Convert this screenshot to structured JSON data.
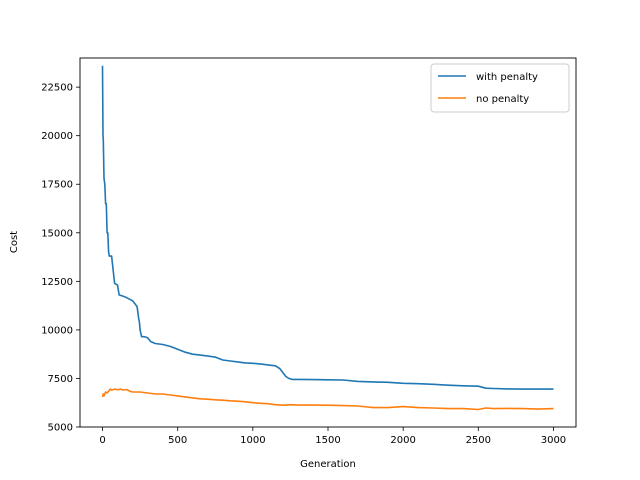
{
  "chart_data": {
    "type": "line",
    "title": "",
    "xlabel": "Generation",
    "ylabel": "Cost",
    "xlim": [
      -150,
      3150
    ],
    "ylim": [
      5000,
      24000
    ],
    "xticks": [
      0,
      500,
      1000,
      1500,
      2000,
      2500,
      3000
    ],
    "xtick_labels": [
      "0",
      "500",
      "1000",
      "1500",
      "2000",
      "2500",
      "3000"
    ],
    "yticks": [
      5000,
      7500,
      10000,
      12500,
      15000,
      17500,
      20000,
      22500
    ],
    "ytick_labels": [
      "5000",
      "7500",
      "10000",
      "12500",
      "15000",
      "17500",
      "20000",
      "22500"
    ],
    "grid": false,
    "legend_position": "top-right",
    "series": [
      {
        "name": "with penalty",
        "color": "#1f77b4",
        "x": [
          0,
          3,
          5,
          10,
          15,
          20,
          25,
          30,
          35,
          40,
          45,
          50,
          60,
          80,
          100,
          110,
          130,
          150,
          200,
          220,
          230,
          240,
          245,
          250,
          260,
          280,
          300,
          320,
          350,
          400,
          450,
          500,
          550,
          600,
          650,
          700,
          750,
          800,
          850,
          900,
          950,
          1000,
          1050,
          1100,
          1150,
          1180,
          1200,
          1220,
          1240,
          1260,
          1300,
          1400,
          1500,
          1600,
          1700,
          1800,
          1900,
          2000,
          2100,
          2200,
          2300,
          2400,
          2500,
          2550,
          2600,
          2700,
          2800,
          2900,
          3000
        ],
        "y": [
          23600,
          20000,
          19800,
          17800,
          17500,
          16500,
          16500,
          15000,
          15000,
          14000,
          13800,
          13800,
          13800,
          12400,
          12300,
          11800,
          11750,
          11700,
          11500,
          11300,
          11200,
          10600,
          10400,
          10000,
          9650,
          9650,
          9600,
          9400,
          9300,
          9250,
          9150,
          9000,
          8850,
          8750,
          8700,
          8650,
          8600,
          8450,
          8400,
          8350,
          8300,
          8280,
          8250,
          8200,
          8150,
          8000,
          7800,
          7600,
          7500,
          7450,
          7450,
          7440,
          7430,
          7420,
          7350,
          7320,
          7300,
          7250,
          7230,
          7200,
          7150,
          7120,
          7100,
          7000,
          6980,
          6960,
          6950,
          6950,
          6950
        ]
      },
      {
        "name": "no penalty",
        "color": "#ff7f0e",
        "x": [
          0,
          5,
          10,
          20,
          30,
          40,
          50,
          60,
          80,
          100,
          120,
          140,
          160,
          180,
          200,
          250,
          300,
          350,
          400,
          450,
          500,
          550,
          600,
          650,
          700,
          750,
          800,
          850,
          900,
          950,
          1000,
          1050,
          1100,
          1150,
          1200,
          1250,
          1300,
          1400,
          1500,
          1600,
          1700,
          1800,
          1900,
          2000,
          2100,
          2200,
          2300,
          2400,
          2500,
          2550,
          2600,
          2700,
          2800,
          2900,
          3000
        ],
        "y": [
          6550,
          6700,
          6600,
          6800,
          6750,
          6850,
          6950,
          6900,
          6950,
          6920,
          6950,
          6900,
          6930,
          6850,
          6800,
          6800,
          6750,
          6700,
          6700,
          6650,
          6600,
          6550,
          6500,
          6450,
          6430,
          6400,
          6380,
          6350,
          6330,
          6300,
          6250,
          6220,
          6200,
          6150,
          6120,
          6150,
          6130,
          6130,
          6120,
          6100,
          6080,
          6000,
          6000,
          6050,
          6000,
          5980,
          5950,
          5950,
          5900,
          5980,
          5950,
          5960,
          5950,
          5920,
          5950
        ]
      }
    ]
  }
}
